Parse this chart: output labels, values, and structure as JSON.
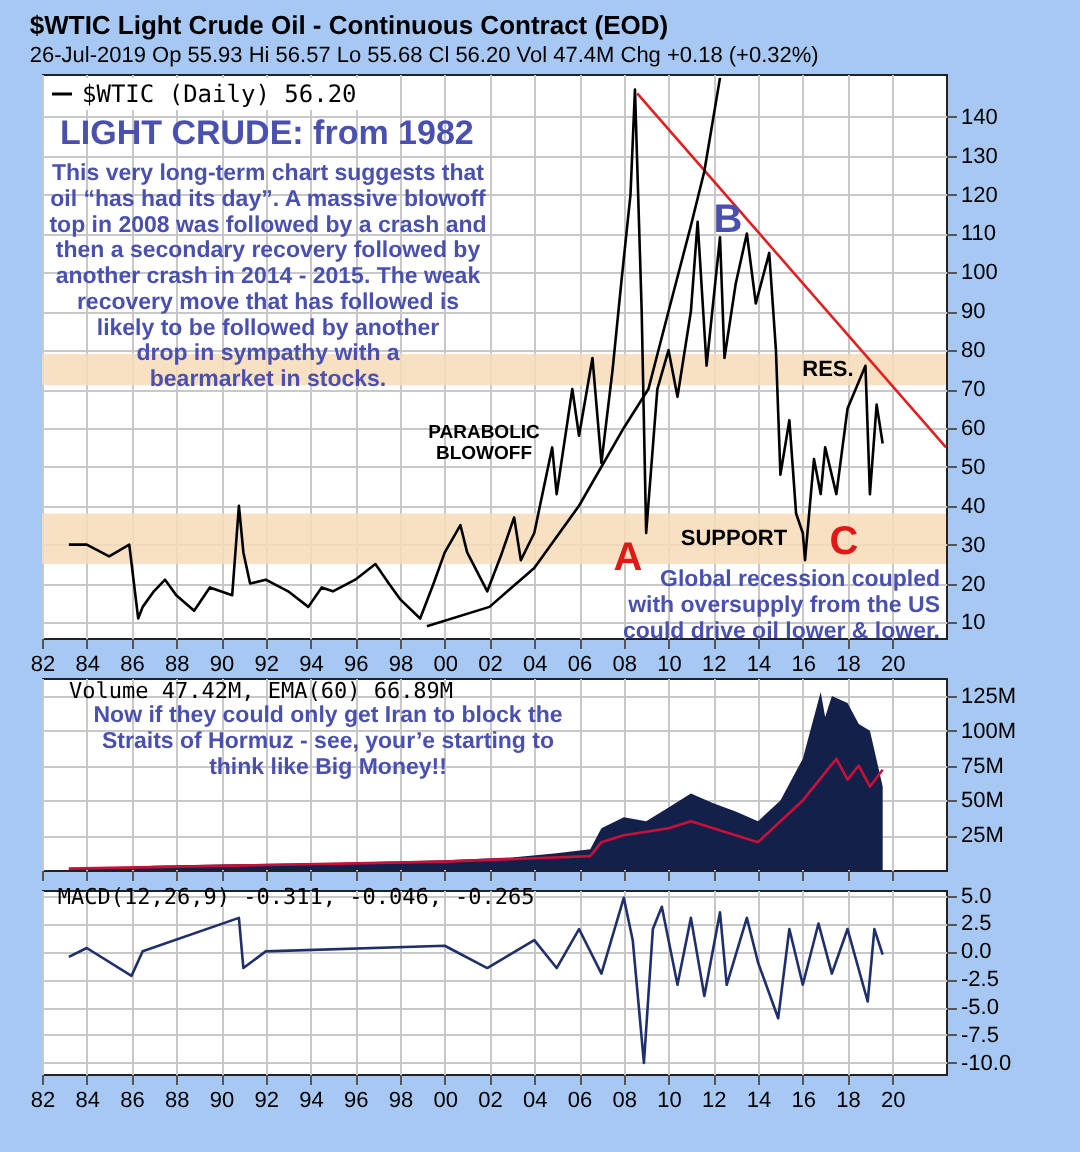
{
  "chart_data": [
    {
      "type": "line",
      "title": "$WTIC Light Crude Oil - Continuous Contract (EOD)",
      "subtitle": "26-Jul-2019   Op 55.93  Hi 56.57  Lo 55.68  Cl 56.20  Vol 47.4M  Chg +0.18 (+0.32%)",
      "xlim": [
        1982,
        2022.4
      ],
      "xticks": [
        {
          "value": 1982,
          "label": "82"
        },
        {
          "value": 1984,
          "label": "84"
        },
        {
          "value": 1986,
          "label": "86"
        },
        {
          "value": 1988,
          "label": "88"
        },
        {
          "value": 1990,
          "label": "90"
        },
        {
          "value": 1992,
          "label": "92"
        },
        {
          "value": 1994,
          "label": "94"
        },
        {
          "value": 1996,
          "label": "96"
        },
        {
          "value": 1998,
          "label": "98"
        },
        {
          "value": 2000,
          "label": "00"
        },
        {
          "value": 2002,
          "label": "02"
        },
        {
          "value": 2004,
          "label": "04"
        },
        {
          "value": 2006,
          "label": "06"
        },
        {
          "value": 2008,
          "label": "08"
        },
        {
          "value": 2010,
          "label": "10"
        },
        {
          "value": 2012,
          "label": "12"
        },
        {
          "value": 2014,
          "label": "14"
        },
        {
          "value": 2016,
          "label": "16"
        },
        {
          "value": 2018,
          "label": "18"
        },
        {
          "value": 2020,
          "label": "20"
        }
      ],
      "ylim": [
        6,
        151
      ],
      "yticks": [
        10,
        20,
        30,
        40,
        50,
        60,
        70,
        80,
        90,
        100,
        110,
        120,
        130,
        140
      ],
      "grid": true,
      "legend": "top left",
      "series": [
        {
          "name": "$WTIC (Daily) 56.20",
          "color": "#000000",
          "x": [
            1983.2,
            1984,
            1985,
            1985.9,
            1986.3,
            1986.5,
            1987,
            1987.5,
            1988,
            1988.8,
            1989.5,
            1990.5,
            1990.8,
            1991,
            1991.3,
            1992,
            1993,
            1993.9,
            1994.5,
            1995,
            1996,
            1996.9,
            1997.5,
            1998,
            1998.9,
            1999.5,
            2000,
            2000.7,
            2001,
            2001.9,
            2002.5,
            2003.1,
            2003.4,
            2004,
            2004.8,
            2005,
            2005.7,
            2006,
            2006.6,
            2007,
            2007.5,
            2007.9,
            2008.3,
            2008.5,
            2008.8,
            2009,
            2009.5,
            2010,
            2010.4,
            2011,
            2011.3,
            2011.7,
            2012.3,
            2012.5,
            2013,
            2013.5,
            2013.9,
            2014.5,
            2014.8,
            2015,
            2015.4,
            2015.7,
            2016,
            2016.1,
            2016.5,
            2016.8,
            2017,
            2017.5,
            2018,
            2018.8,
            2019,
            2019.3,
            2019.57
          ],
          "values": [
            30,
            30,
            27,
            30,
            11,
            14,
            18,
            21,
            17,
            13,
            19,
            17,
            40,
            28,
            20,
            21,
            18,
            14,
            19,
            18,
            21,
            25,
            20,
            16,
            11,
            20,
            28,
            35,
            28,
            18,
            27,
            37,
            26,
            33,
            55,
            43,
            70,
            58,
            78,
            51,
            75,
            98,
            120,
            147,
            90,
            33,
            70,
            80,
            68,
            90,
            113,
            76,
            109,
            78,
            97,
            110,
            92,
            105,
            80,
            48,
            62,
            38,
            33,
            26,
            52,
            43,
            55,
            43,
            65,
            76,
            43,
            66,
            56
          ]
        },
        {
          "type": "line",
          "color": "#e02020",
          "x": [
            2008.6,
            2022.4
          ],
          "values": [
            146,
            55
          ]
        },
        {
          "type": "line",
          "color": "#000000",
          "x": [
            1999.2,
            2002,
            2004,
            2006,
            2008,
            2009.1,
            2010,
            2011,
            2011.6,
            2012.3
          ],
          "values": [
            9,
            14,
            24,
            40,
            60,
            70,
            90,
            112,
            126,
            150
          ]
        }
      ],
      "bands": [
        {
          "axis": "y",
          "from": 71,
          "to": 79,
          "label": "RES.",
          "color": "#f7dcb8"
        },
        {
          "axis": "y",
          "from": 25,
          "to": 38,
          "label": "SUPPORT",
          "color": "#f7dcb8"
        }
      ],
      "annotations": [
        "LIGHT CRUDE: from 1982",
        "This very long-term chart suggests that\noil “has had its day”. A massive blowoff\ntop in 2008 was followed by a crash and\nthen a secondary recovery followed by\nanother crash in 2014 - 2015. The weak\nrecovery move that has followed is\nlikely to be followed by another\ndrop in sympathy with a\nbearmarket in stocks.",
        "PARABOLIC\nBLOWOFF",
        "Global recession coupled\nwith oversupply from the US\ncould drive oil lower & lower.",
        "A",
        "B",
        "C"
      ]
    },
    {
      "type": "area",
      "title": "Volume 47.42M, EMA(60) 66.89M",
      "tick_labels": "y",
      "xlim": [
        1982,
        2022.4
      ],
      "xticks": [
        {
          "value": 1982,
          "label": null
        },
        {
          "value": 1984,
          "label": null
        },
        {
          "value": 1986,
          "label": null
        },
        {
          "value": 1988,
          "label": null
        },
        {
          "value": 1990,
          "label": null
        },
        {
          "value": 1992,
          "label": null
        },
        {
          "value": 1994,
          "label": null
        },
        {
          "value": 1996,
          "label": null
        },
        {
          "value": 1998,
          "label": null
        },
        {
          "value": 2000,
          "label": null
        },
        {
          "value": 2002,
          "label": null
        },
        {
          "value": 2004,
          "label": null
        },
        {
          "value": 2006,
          "label": null
        },
        {
          "value": 2008,
          "label": null
        },
        {
          "value": 2010,
          "label": null
        },
        {
          "value": 2012,
          "label": null
        },
        {
          "value": 2014,
          "label": null
        },
        {
          "value": 2016,
          "label": null
        },
        {
          "value": 2018,
          "label": null
        },
        {
          "value": 2020,
          "label": null
        }
      ],
      "ylim": [
        0,
        138
      ],
      "yticks": [
        {
          "value": 25,
          "label": "25M"
        },
        {
          "value": 50,
          "label": "50M"
        },
        {
          "value": 75,
          "label": "75M"
        },
        {
          "value": 100,
          "label": "100M"
        },
        {
          "value": 125,
          "label": "125M"
        }
      ],
      "grid": true,
      "series": [
        {
          "color": "#13214a",
          "x": [
            1983.2,
            1985,
            1987,
            1990,
            1995,
            2000,
            2003,
            2005,
            2006.5,
            2007,
            2008,
            2009,
            2010,
            2011,
            2012,
            2013,
            2014,
            2015,
            2016,
            2016.8,
            2017,
            2017.3,
            2018,
            2018.5,
            2019,
            2019.57
          ],
          "values": [
            1,
            1,
            3,
            4,
            5,
            7,
            9,
            12,
            15,
            30,
            38,
            35,
            45,
            55,
            48,
            42,
            35,
            50,
            80,
            128,
            110,
            125,
            120,
            105,
            100,
            60
          ]
        },
        {
          "type": "line",
          "color": "#c8103a",
          "x": [
            1983.2,
            1990,
            2000,
            2006.5,
            2007,
            2008,
            2010,
            2011,
            2013,
            2014,
            2015,
            2016,
            2017,
            2017.5,
            2018,
            2018.5,
            2019,
            2019.57
          ],
          "values": [
            1,
            3,
            6,
            10,
            20,
            25,
            30,
            35,
            25,
            20,
            35,
            50,
            70,
            80,
            65,
            75,
            60,
            72
          ]
        }
      ],
      "annotations": [
        "Now if they could only get Iran to block the\nStraits of Hormuz - see, your’e starting to\nthink like Big Money!!"
      ]
    },
    {
      "type": "line",
      "title": "MACD(12,26,9) -0.311, -0.046, -0.265",
      "xlim": [
        1982,
        2022.4
      ],
      "xticks": [
        {
          "value": 1982,
          "label": "82"
        },
        {
          "value": 1984,
          "label": "84"
        },
        {
          "value": 1986,
          "label": "86"
        },
        {
          "value": 1988,
          "label": "88"
        },
        {
          "value": 1990,
          "label": "90"
        },
        {
          "value": 1992,
          "label": "92"
        },
        {
          "value": 1994,
          "label": "94"
        },
        {
          "value": 1996,
          "label": "96"
        },
        {
          "value": 1998,
          "label": "98"
        },
        {
          "value": 2000,
          "label": "00"
        },
        {
          "value": 2002,
          "label": "02"
        },
        {
          "value": 2004,
          "label": "04"
        },
        {
          "value": 2006,
          "label": "06"
        },
        {
          "value": 2008,
          "label": "08"
        },
        {
          "value": 2010,
          "label": "10"
        },
        {
          "value": 2012,
          "label": "12"
        },
        {
          "value": 2014,
          "label": "14"
        },
        {
          "value": 2016,
          "label": "16"
        },
        {
          "value": 2018,
          "label": "18"
        },
        {
          "value": 2020,
          "label": "20"
        }
      ],
      "ylim": [
        -11,
        5.5
      ],
      "yticks": [
        {
          "value": 5,
          "label": "5.0"
        },
        {
          "value": 2.5,
          "label": "2.5"
        },
        {
          "value": 0,
          "label": "0.0"
        },
        {
          "value": -2.5,
          "label": "-2.5"
        },
        {
          "value": -5,
          "label": "-5.0"
        },
        {
          "value": -7.5,
          "label": "-7.5"
        },
        {
          "value": -10,
          "label": "-10.0"
        }
      ],
      "grid": true,
      "series": [
        {
          "color": "#1f2f6b",
          "x": [
            1983.2,
            1984,
            1986,
            1986.5,
            1990.8,
            1991,
            1992,
            2000,
            2001.9,
            2004,
            2005,
            2006,
            2007,
            2008,
            2008.4,
            2008.9,
            2009.3,
            2009.7,
            2010.4,
            2011,
            2011.6,
            2012.3,
            2012.6,
            2013.5,
            2014,
            2014.9,
            2015.4,
            2016,
            2016.7,
            2017.3,
            2018,
            2018.9,
            2019.2,
            2019.57
          ],
          "values": [
            -0.5,
            0.3,
            -2.2,
            0,
            3,
            -1.5,
            0,
            0.5,
            -1.5,
            1,
            -1.5,
            2,
            -2,
            4.8,
            1,
            -10,
            2,
            4,
            -3,
            3,
            -4,
            3.5,
            -3,
            3,
            -1,
            -6,
            2,
            -3,
            2.5,
            -2,
            2,
            -4.5,
            2,
            -0.3
          ]
        }
      ]
    }
  ]
}
